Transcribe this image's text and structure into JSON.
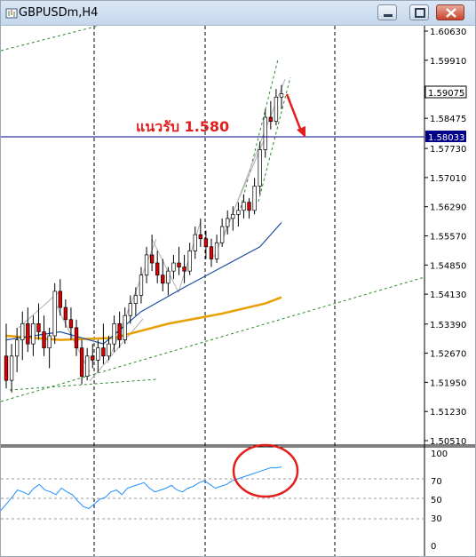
{
  "window": {
    "title": "GBPUSDm,H4"
  },
  "price_axis": {
    "labels": [
      "1.60630",
      "1.59910",
      "1.58475",
      "1.57730",
      "1.57010",
      "1.56290",
      "1.55570",
      "1.54850",
      "1.54130",
      "1.53390",
      "1.52670",
      "1.51950",
      "1.51230",
      "1.50510"
    ],
    "current_price": "1.59075",
    "support_price": "1.58033"
  },
  "annotation": {
    "text": "แนวรับ 1.580"
  },
  "rsi_axis": {
    "labels": [
      "100",
      "70",
      "50",
      "30",
      "0"
    ]
  },
  "colors": {
    "support_line": "#00008b",
    "annotation": "#e0201c",
    "ma_fast": "#1f4fa0",
    "ma_slow": "#e8a000",
    "rsi_line": "#1e90ff",
    "bull_candle": "#ffffff",
    "bear_candle": "#e00000"
  },
  "chart_data": {
    "type": "candlestick",
    "symbol": "GBPUSDm",
    "timeframe": "H4",
    "support_level": 1.58033,
    "last_price": 1.59075,
    "ylim": [
      1.5051,
      1.6063
    ],
    "candles": [
      [
        1.526,
        1.534,
        1.518,
        1.52
      ],
      [
        1.52,
        1.529,
        1.517,
        1.526
      ],
      [
        1.526,
        1.533,
        1.522,
        1.53
      ],
      [
        1.53,
        1.537,
        1.525,
        1.534
      ],
      [
        1.534,
        1.538,
        1.527,
        1.529
      ],
      [
        1.529,
        1.536,
        1.526,
        1.534
      ],
      [
        1.534,
        1.539,
        1.53,
        1.532
      ],
      [
        1.532,
        1.536,
        1.526,
        1.528
      ],
      [
        1.528,
        1.533,
        1.523,
        1.531
      ],
      [
        1.531,
        1.544,
        1.529,
        1.542
      ],
      [
        1.542,
        1.545,
        1.536,
        1.538
      ],
      [
        1.538,
        1.54,
        1.533,
        1.535
      ],
      [
        1.535,
        1.538,
        1.53,
        1.533
      ],
      [
        1.533,
        1.535,
        1.526,
        1.528
      ],
      [
        1.528,
        1.53,
        1.519,
        1.521
      ],
      [
        1.521,
        1.528,
        1.52,
        1.526
      ],
      [
        1.526,
        1.529,
        1.523,
        1.525
      ],
      [
        1.525,
        1.53,
        1.522,
        1.528
      ],
      [
        1.528,
        1.534,
        1.524,
        1.526
      ],
      [
        1.526,
        1.531,
        1.525,
        1.529
      ],
      [
        1.529,
        1.536,
        1.527,
        1.534
      ],
      [
        1.534,
        1.537,
        1.528,
        1.53
      ],
      [
        1.53,
        1.538,
        1.529,
        1.536
      ],
      [
        1.536,
        1.541,
        1.534,
        1.539
      ],
      [
        1.539,
        1.543,
        1.536,
        1.541
      ],
      [
        1.541,
        1.548,
        1.539,
        1.546
      ],
      [
        1.546,
        1.553,
        1.544,
        1.551
      ],
      [
        1.551,
        1.556,
        1.547,
        1.549
      ],
      [
        1.549,
        1.552,
        1.544,
        1.546
      ],
      [
        1.546,
        1.55,
        1.542,
        1.544
      ],
      [
        1.544,
        1.548,
        1.541,
        1.547
      ],
      [
        1.547,
        1.551,
        1.545,
        1.549
      ],
      [
        1.549,
        1.553,
        1.546,
        1.548
      ],
      [
        1.548,
        1.551,
        1.544,
        1.547
      ],
      [
        1.547,
        1.554,
        1.546,
        1.552
      ],
      [
        1.552,
        1.558,
        1.55,
        1.556
      ],
      [
        1.556,
        1.56,
        1.553,
        1.555
      ],
      [
        1.555,
        1.557,
        1.55,
        1.553
      ],
      [
        1.553,
        1.555,
        1.548,
        1.55
      ],
      [
        1.55,
        1.556,
        1.549,
        1.554
      ],
      [
        1.554,
        1.56,
        1.553,
        1.558
      ],
      [
        1.558,
        1.562,
        1.556,
        1.56
      ],
      [
        1.56,
        1.563,
        1.557,
        1.561
      ],
      [
        1.561,
        1.564,
        1.558,
        1.562
      ],
      [
        1.562,
        1.566,
        1.56,
        1.564
      ],
      [
        1.564,
        1.565,
        1.56,
        1.562
      ],
      [
        1.562,
        1.57,
        1.561,
        1.568
      ],
      [
        1.568,
        1.579,
        1.566,
        1.577
      ],
      [
        1.577,
        1.587,
        1.575,
        1.585
      ],
      [
        1.585,
        1.589,
        1.582,
        1.584
      ],
      [
        1.584,
        1.592,
        1.583,
        1.59
      ],
      [
        1.59,
        1.593,
        1.587,
        1.5908
      ]
    ],
    "ma_fast": [
      [
        0,
        1.53
      ],
      [
        10,
        1.532
      ],
      [
        18,
        1.529
      ],
      [
        25,
        1.537
      ],
      [
        33,
        1.543
      ],
      [
        40,
        1.548
      ],
      [
        47,
        1.553
      ],
      [
        51,
        1.559
      ]
    ],
    "ma_slow": [
      [
        0,
        1.531
      ],
      [
        10,
        1.53
      ],
      [
        20,
        1.5305
      ],
      [
        30,
        1.534
      ],
      [
        40,
        1.5365
      ],
      [
        48,
        1.539
      ],
      [
        51,
        1.5405
      ]
    ],
    "rsi_ylim": [
      0,
      100
    ],
    "rsi": [
      38,
      45,
      52,
      60,
      58,
      55,
      62,
      66,
      60,
      58,
      55,
      62,
      58,
      55,
      48,
      42,
      40,
      45,
      50,
      52,
      58,
      60,
      55,
      62,
      64,
      66,
      68,
      62,
      58,
      60,
      62,
      65,
      60,
      58,
      62,
      64,
      68,
      70,
      66,
      62,
      64,
      66,
      70,
      72,
      74,
      76,
      78,
      80,
      82,
      84,
      84,
      85
    ]
  }
}
